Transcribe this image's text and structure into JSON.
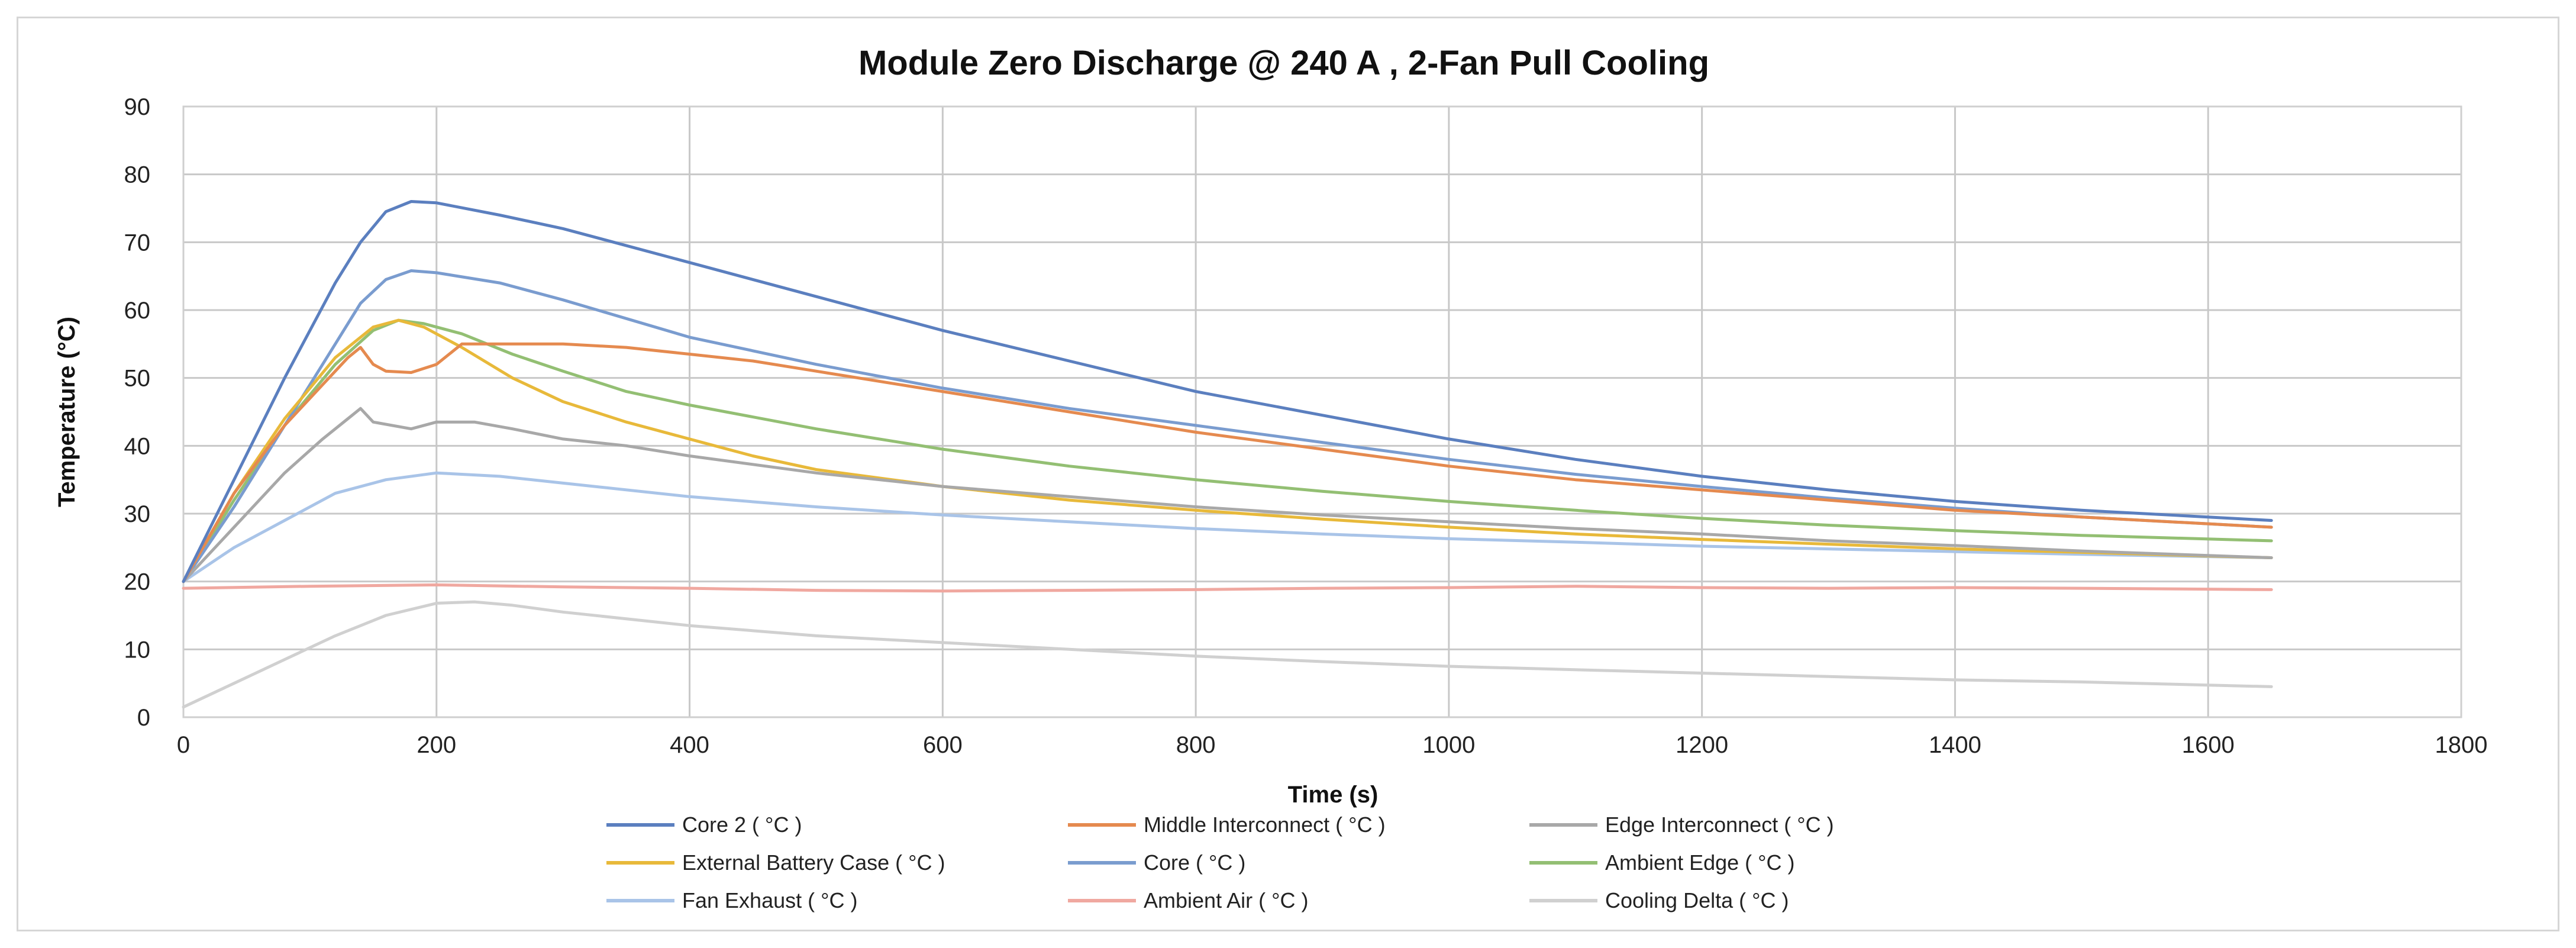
{
  "chart_data": {
    "type": "line",
    "title": "Module Zero Discharge @ 240 A , 2-Fan Pull Cooling",
    "xlabel": "Time (s)",
    "ylabel": "Temperature (°C)",
    "xlim": [
      0,
      1800
    ],
    "ylim": [
      0,
      90
    ],
    "xticks": [
      "0",
      "200",
      "400",
      "600",
      "800",
      "1000",
      "1200",
      "1400",
      "1600",
      "1800"
    ],
    "yticks": [
      "0",
      "10",
      "20",
      "30",
      "40",
      "50",
      "60",
      "70",
      "80",
      "90"
    ],
    "grid": true,
    "legend_position": "bottom",
    "series": [
      {
        "name": "Core 2 ( °C )",
        "color": "#5b7fbf",
        "points": [
          [
            0,
            20
          ],
          [
            40,
            35
          ],
          [
            80,
            50
          ],
          [
            120,
            64
          ],
          [
            140,
            70
          ],
          [
            160,
            74.5
          ],
          [
            180,
            76
          ],
          [
            200,
            75.8
          ],
          [
            250,
            74
          ],
          [
            300,
            72
          ],
          [
            400,
            67
          ],
          [
            500,
            62
          ],
          [
            600,
            57
          ],
          [
            700,
            52.5
          ],
          [
            800,
            48
          ],
          [
            900,
            44.5
          ],
          [
            1000,
            41
          ],
          [
            1100,
            38
          ],
          [
            1200,
            35.5
          ],
          [
            1300,
            33.5
          ],
          [
            1400,
            31.8
          ],
          [
            1500,
            30.5
          ],
          [
            1650,
            29
          ]
        ]
      },
      {
        "name": "Middle Interconnect ( °C )",
        "color": "#e58a4f",
        "points": [
          [
            0,
            20
          ],
          [
            40,
            33
          ],
          [
            80,
            43
          ],
          [
            110,
            49
          ],
          [
            130,
            53
          ],
          [
            140,
            54.5
          ],
          [
            150,
            52
          ],
          [
            160,
            51
          ],
          [
            180,
            50.8
          ],
          [
            200,
            52
          ],
          [
            220,
            55
          ],
          [
            250,
            55
          ],
          [
            300,
            55
          ],
          [
            350,
            54.5
          ],
          [
            400,
            53.5
          ],
          [
            450,
            52.5
          ],
          [
            500,
            51
          ],
          [
            600,
            48
          ],
          [
            700,
            45
          ],
          [
            800,
            42
          ],
          [
            900,
            39.5
          ],
          [
            1000,
            37
          ],
          [
            1100,
            35
          ],
          [
            1200,
            33.5
          ],
          [
            1300,
            32
          ],
          [
            1400,
            30.5
          ],
          [
            1500,
            29.5
          ],
          [
            1650,
            28
          ]
        ]
      },
      {
        "name": "Edge Interconnect ( °C )",
        "color": "#a8a8a8",
        "points": [
          [
            0,
            20
          ],
          [
            40,
            28
          ],
          [
            80,
            36
          ],
          [
            110,
            41
          ],
          [
            130,
            44
          ],
          [
            140,
            45.5
          ],
          [
            150,
            43.5
          ],
          [
            180,
            42.5
          ],
          [
            200,
            43.5
          ],
          [
            230,
            43.5
          ],
          [
            260,
            42.5
          ],
          [
            300,
            41
          ],
          [
            350,
            40
          ],
          [
            400,
            38.5
          ],
          [
            500,
            36
          ],
          [
            600,
            34
          ],
          [
            700,
            32.5
          ],
          [
            800,
            31
          ],
          [
            900,
            29.8
          ],
          [
            1000,
            28.8
          ],
          [
            1100,
            27.8
          ],
          [
            1200,
            27
          ],
          [
            1300,
            26
          ],
          [
            1400,
            25.3
          ],
          [
            1500,
            24.5
          ],
          [
            1650,
            23.5
          ]
        ]
      },
      {
        "name": "External Battery Case ( °C )",
        "color": "#e8b93a",
        "points": [
          [
            0,
            20
          ],
          [
            40,
            33
          ],
          [
            80,
            44
          ],
          [
            120,
            53
          ],
          [
            150,
            57.5
          ],
          [
            170,
            58.5
          ],
          [
            190,
            57.5
          ],
          [
            220,
            54.5
          ],
          [
            260,
            50
          ],
          [
            300,
            46.5
          ],
          [
            350,
            43.5
          ],
          [
            400,
            41
          ],
          [
            450,
            38.5
          ],
          [
            500,
            36.5
          ],
          [
            600,
            34
          ],
          [
            700,
            32
          ],
          [
            800,
            30.5
          ],
          [
            900,
            29.2
          ],
          [
            1000,
            28
          ],
          [
            1100,
            27
          ],
          [
            1200,
            26.2
          ],
          [
            1300,
            25.5
          ],
          [
            1400,
            24.8
          ],
          [
            1500,
            24.3
          ],
          [
            1650,
            23.5
          ]
        ]
      },
      {
        "name": "Core ( °C )",
        "color": "#7a9ccf",
        "points": [
          [
            0,
            20
          ],
          [
            40,
            31
          ],
          [
            80,
            43
          ],
          [
            120,
            55
          ],
          [
            140,
            61
          ],
          [
            160,
            64.5
          ],
          [
            180,
            65.8
          ],
          [
            200,
            65.5
          ],
          [
            250,
            64
          ],
          [
            300,
            61.5
          ],
          [
            400,
            56
          ],
          [
            500,
            52
          ],
          [
            600,
            48.5
          ],
          [
            700,
            45.5
          ],
          [
            800,
            43
          ],
          [
            900,
            40.5
          ],
          [
            1000,
            38
          ],
          [
            1100,
            35.8
          ],
          [
            1200,
            34
          ],
          [
            1300,
            32.3
          ],
          [
            1400,
            30.8
          ],
          [
            1500,
            29.5
          ],
          [
            1650,
            28
          ]
        ]
      },
      {
        "name": "Ambient Edge ( °C )",
        "color": "#93bf73",
        "points": [
          [
            0,
            20
          ],
          [
            40,
            32
          ],
          [
            80,
            43
          ],
          [
            120,
            52
          ],
          [
            150,
            57
          ],
          [
            170,
            58.5
          ],
          [
            190,
            58
          ],
          [
            220,
            56.5
          ],
          [
            260,
            53.5
          ],
          [
            300,
            51
          ],
          [
            350,
            48
          ],
          [
            400,
            46
          ],
          [
            500,
            42.5
          ],
          [
            600,
            39.5
          ],
          [
            700,
            37
          ],
          [
            800,
            35
          ],
          [
            900,
            33.3
          ],
          [
            1000,
            31.8
          ],
          [
            1100,
            30.5
          ],
          [
            1200,
            29.3
          ],
          [
            1300,
            28.3
          ],
          [
            1400,
            27.5
          ],
          [
            1500,
            26.8
          ],
          [
            1650,
            26
          ]
        ]
      },
      {
        "name": "Fan Exhaust ( °C )",
        "color": "#a9c4e8",
        "points": [
          [
            0,
            20
          ],
          [
            40,
            25
          ],
          [
            80,
            29
          ],
          [
            120,
            33
          ],
          [
            160,
            35
          ],
          [
            200,
            36
          ],
          [
            250,
            35.5
          ],
          [
            300,
            34.5
          ],
          [
            400,
            32.5
          ],
          [
            500,
            31
          ],
          [
            600,
            29.8
          ],
          [
            700,
            28.8
          ],
          [
            800,
            27.8
          ],
          [
            900,
            27
          ],
          [
            1000,
            26.3
          ],
          [
            1100,
            25.8
          ],
          [
            1200,
            25.2
          ],
          [
            1300,
            24.8
          ],
          [
            1400,
            24.4
          ],
          [
            1500,
            24
          ],
          [
            1650,
            23.5
          ]
        ]
      },
      {
        "name": "Ambient Air ( °C )",
        "color": "#f0a8a0",
        "points": [
          [
            0,
            19
          ],
          [
            100,
            19.3
          ],
          [
            200,
            19.5
          ],
          [
            300,
            19.2
          ],
          [
            400,
            19
          ],
          [
            500,
            18.7
          ],
          [
            600,
            18.6
          ],
          [
            700,
            18.7
          ],
          [
            800,
            18.8
          ],
          [
            900,
            19
          ],
          [
            1000,
            19.1
          ],
          [
            1100,
            19.3
          ],
          [
            1200,
            19.1
          ],
          [
            1300,
            19
          ],
          [
            1400,
            19.1
          ],
          [
            1500,
            19
          ],
          [
            1650,
            18.8
          ]
        ]
      },
      {
        "name": "Cooling Delta ( °C )",
        "color": "#d0d0d0",
        "points": [
          [
            0,
            1.5
          ],
          [
            40,
            5
          ],
          [
            80,
            8.5
          ],
          [
            120,
            12
          ],
          [
            160,
            15
          ],
          [
            200,
            16.8
          ],
          [
            230,
            17
          ],
          [
            260,
            16.5
          ],
          [
            300,
            15.5
          ],
          [
            400,
            13.5
          ],
          [
            500,
            12
          ],
          [
            600,
            11
          ],
          [
            700,
            10
          ],
          [
            800,
            9
          ],
          [
            900,
            8.2
          ],
          [
            1000,
            7.5
          ],
          [
            1100,
            7
          ],
          [
            1200,
            6.5
          ],
          [
            1300,
            6
          ],
          [
            1400,
            5.5
          ],
          [
            1500,
            5.2
          ],
          [
            1650,
            4.5
          ]
        ]
      }
    ]
  }
}
